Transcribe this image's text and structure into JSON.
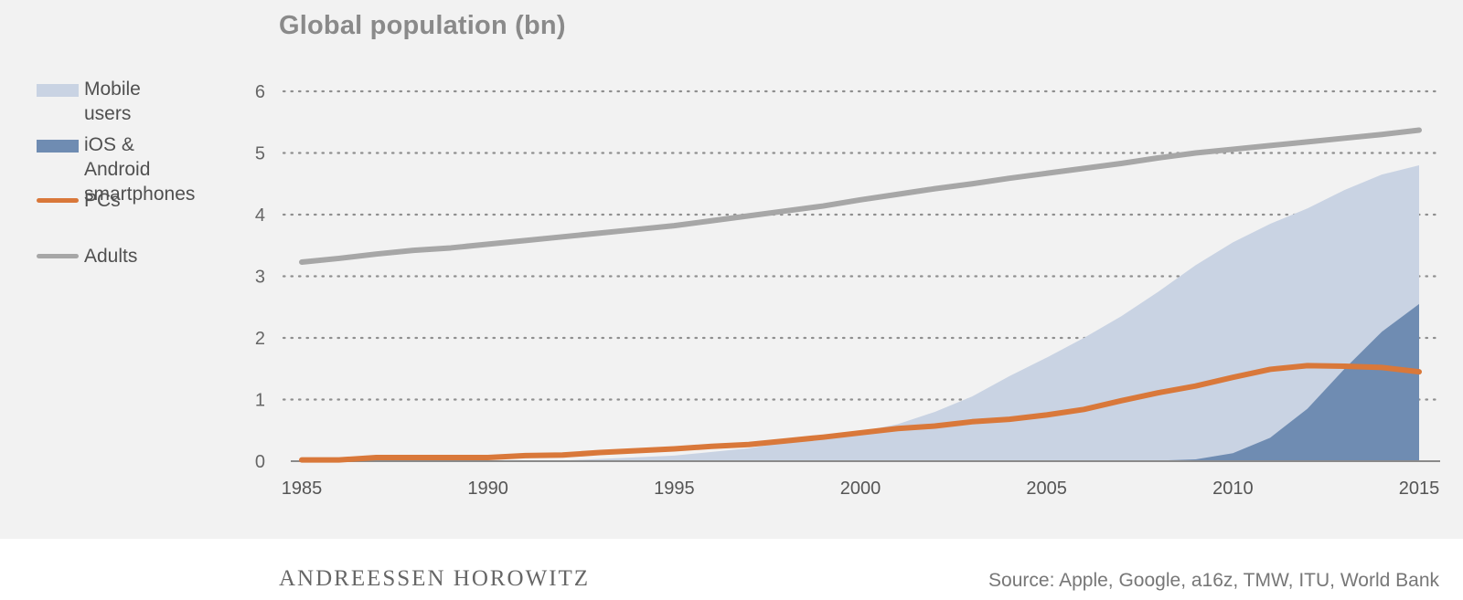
{
  "chart_data": {
    "type": "area",
    "title": "Global population (bn)",
    "xlabel": "",
    "ylabel": "",
    "xlim": [
      1985,
      2015
    ],
    "ylim": [
      0,
      6
    ],
    "x_ticks": [
      1985,
      1990,
      1995,
      2000,
      2005,
      2010,
      2015
    ],
    "y_ticks": [
      0,
      1,
      2,
      3,
      4,
      5,
      6
    ],
    "grid": "horizontal dotted",
    "legend_position": "left",
    "series": [
      {
        "name": "Mobile users",
        "kind": "area",
        "color": "#c9d3e3",
        "x": [
          1985,
          1990,
          1992,
          1995,
          1997,
          1999,
          2000,
          2001,
          2002,
          2003,
          2004,
          2005,
          2006,
          2007,
          2008,
          2009,
          2010,
          2011,
          2012,
          2013,
          2014,
          2015
        ],
        "values": [
          0,
          0,
          0.01,
          0.09,
          0.21,
          0.4,
          0.48,
          0.6,
          0.8,
          1.05,
          1.38,
          1.68,
          2.0,
          2.35,
          2.75,
          3.18,
          3.55,
          3.85,
          4.1,
          4.4,
          4.65,
          4.8
        ]
      },
      {
        "name": "iOS & Android smartphones",
        "kind": "area",
        "color": "#6f8cb2",
        "x": [
          2007,
          2008,
          2009,
          2010,
          2011,
          2012,
          2013,
          2014,
          2015
        ],
        "values": [
          0,
          0.01,
          0.03,
          0.13,
          0.38,
          0.85,
          1.5,
          2.1,
          2.55
        ]
      },
      {
        "name": "PCs",
        "kind": "line",
        "color": "#d9783a",
        "x": [
          1985,
          1986,
          1987,
          1988,
          1989,
          1990,
          1991,
          1992,
          1993,
          1994,
          1995,
          1996,
          1997,
          1998,
          1999,
          2000,
          2001,
          2002,
          2003,
          2004,
          2005,
          2006,
          2007,
          2008,
          2009,
          2010,
          2011,
          2012,
          2013,
          2014,
          2015
        ],
        "values": [
          0.02,
          0.02,
          0.06,
          0.06,
          0.06,
          0.06,
          0.09,
          0.1,
          0.14,
          0.17,
          0.2,
          0.24,
          0.27,
          0.33,
          0.39,
          0.46,
          0.53,
          0.57,
          0.64,
          0.68,
          0.75,
          0.84,
          0.98,
          1.11,
          1.22,
          1.36,
          1.49,
          1.55,
          1.54,
          1.52,
          1.45
        ]
      },
      {
        "name": "Adults",
        "kind": "line",
        "color": "#a7a7a7",
        "x": [
          1985,
          1986,
          1987,
          1988,
          1989,
          1990,
          1991,
          1992,
          1993,
          1994,
          1995,
          1996,
          1997,
          1998,
          1999,
          2000,
          2001,
          2002,
          2003,
          2004,
          2005,
          2006,
          2007,
          2008,
          2009,
          2010,
          2011,
          2012,
          2013,
          2014,
          2015
        ],
        "values": [
          3.23,
          3.29,
          3.36,
          3.42,
          3.46,
          3.52,
          3.58,
          3.64,
          3.7,
          3.76,
          3.82,
          3.9,
          3.98,
          4.06,
          4.14,
          4.24,
          4.33,
          4.42,
          4.5,
          4.59,
          4.67,
          4.75,
          4.83,
          4.92,
          5.0,
          5.06,
          5.12,
          5.18,
          5.24,
          5.3,
          5.37
        ]
      }
    ]
  },
  "legend": {
    "items": [
      {
        "label_line1": "Mobile users",
        "label_line2": ""
      },
      {
        "label_line1": "iOS & Android",
        "label_line2": "smartphones"
      },
      {
        "label_line1": "PCs",
        "label_line2": ""
      },
      {
        "label_line1": "Adults",
        "label_line2": ""
      }
    ]
  },
  "footer": {
    "logo_text": "ANDREESSEN HOROWITZ",
    "source": "Source: Apple, Google, a16z, TMW, ITU, World Bank"
  }
}
